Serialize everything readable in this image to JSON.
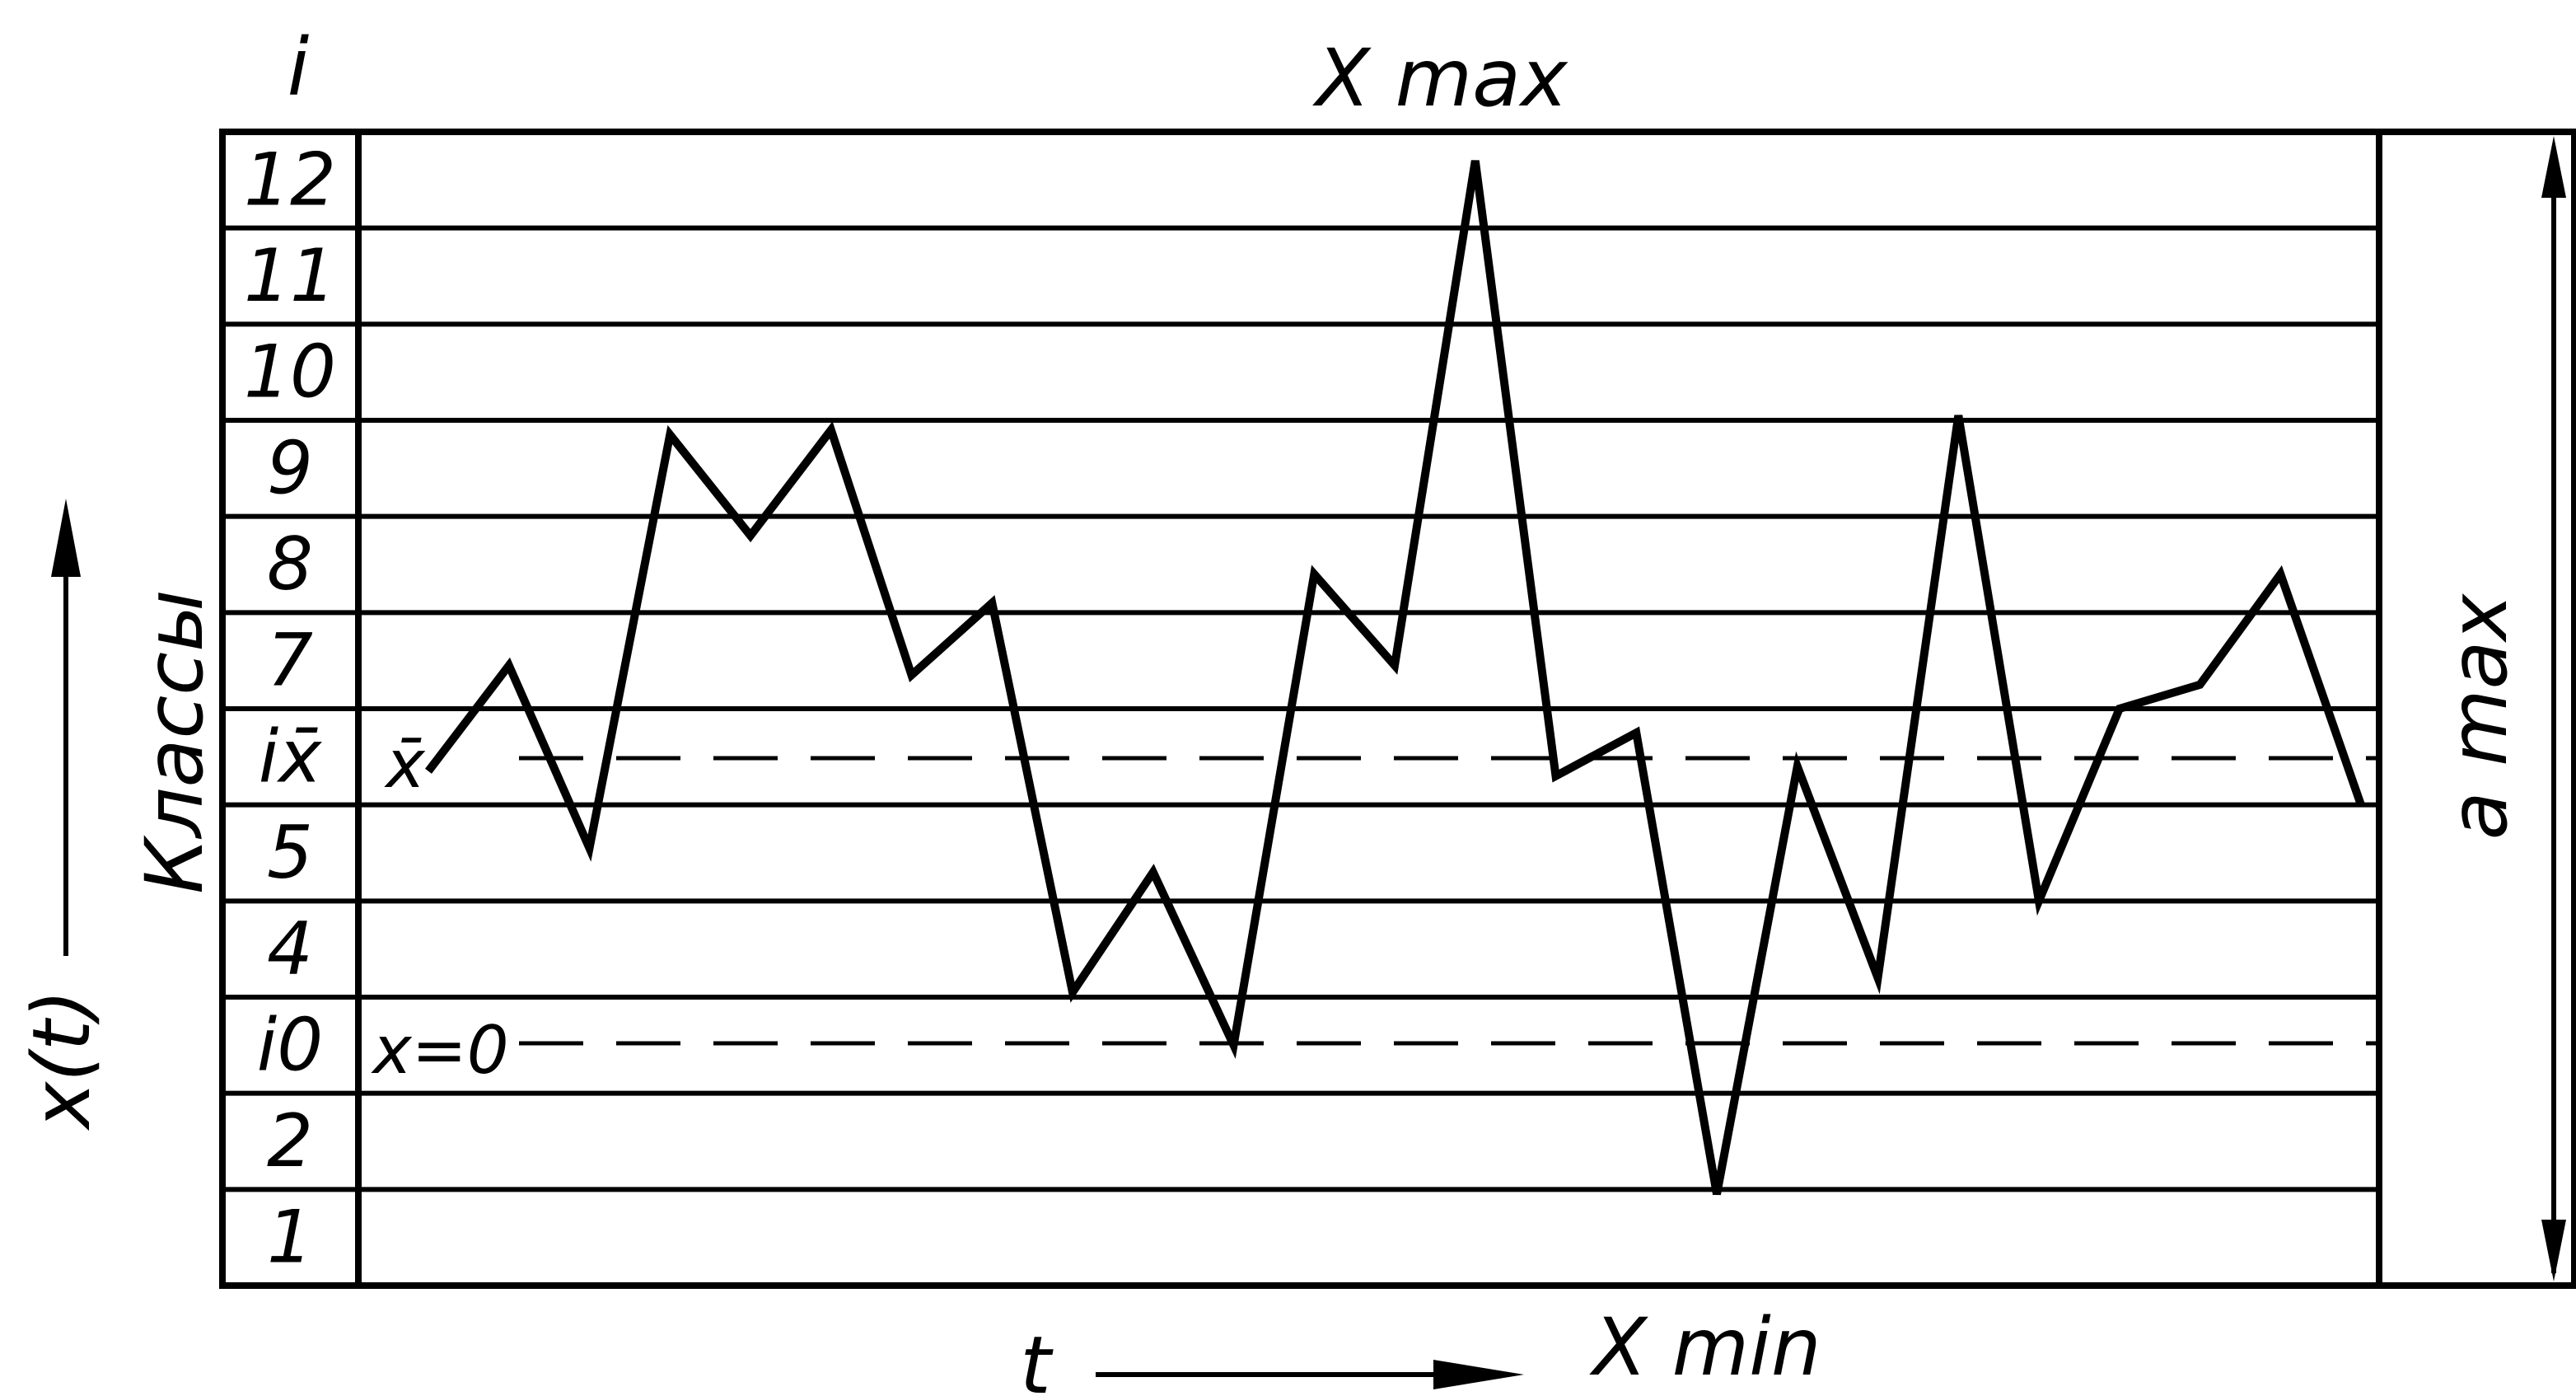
{
  "diagram": {
    "column_header": "i",
    "class_labels": [
      "1",
      "2",
      "i0",
      "4",
      "5",
      "ix̄",
      "7",
      "8",
      "9",
      "10",
      "11",
      "12"
    ],
    "labels": {
      "xmax": "X max",
      "xmin": "X min",
      "amax": "a max",
      "time_axis": "t",
      "signal_axis": "x(t)",
      "classes": "Классы",
      "mean_line": "x̄",
      "zero_line": "x=0"
    },
    "signal_levels": [
      5.35,
      6.45,
      4.55,
      8.85,
      7.8,
      8.9,
      6.35,
      7.1,
      3.05,
      4.3,
      2.5,
      7.4,
      6.45,
      11.7,
      5.3,
      5.75,
      0.95,
      5.4,
      3.2,
      9.05,
      4.0,
      6.0,
      6.25,
      7.4,
      5.0
    ],
    "mean_level": 6.45,
    "zero_level": 3.48
  }
}
